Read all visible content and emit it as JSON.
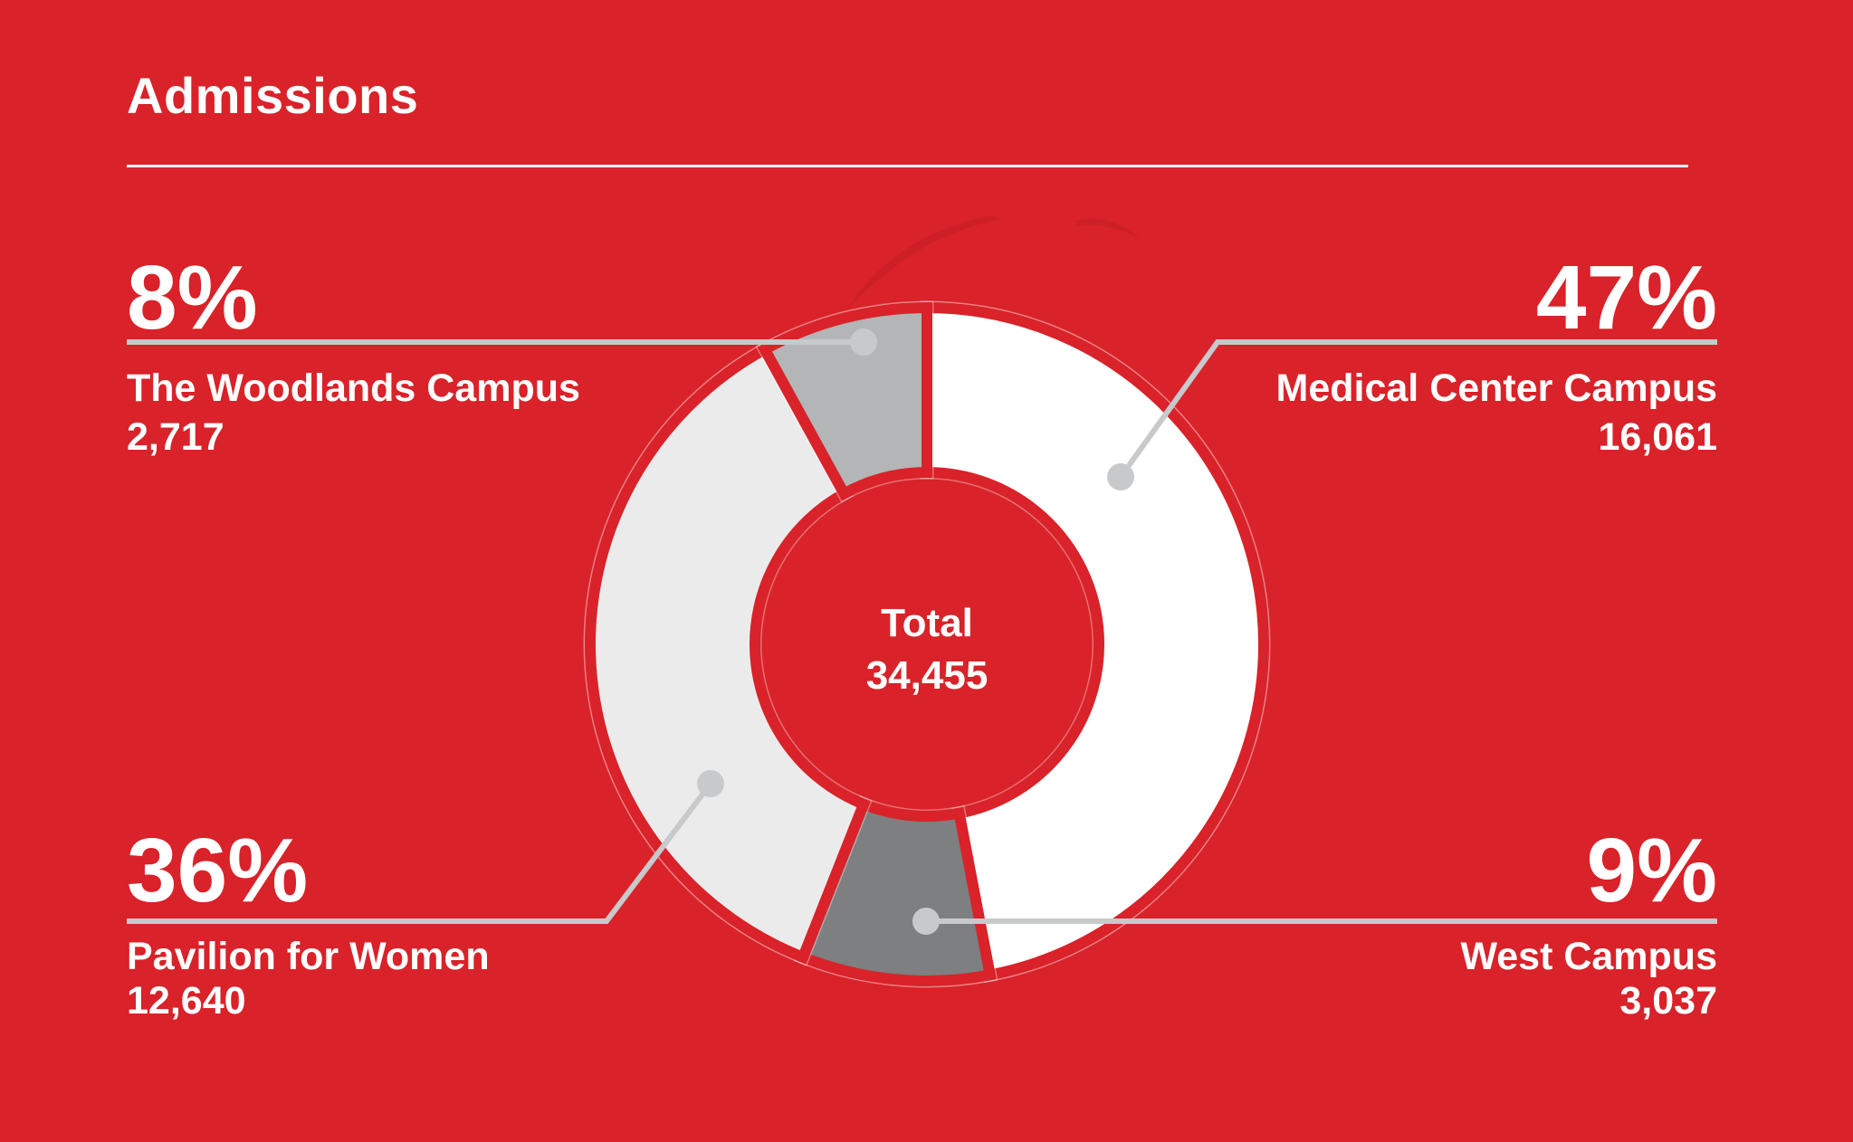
{
  "page": {
    "title": "Admissions"
  },
  "colors": {
    "background": "#d92229",
    "text": "#ffffff",
    "title_rule": "#ffffff",
    "leader_line": "#c7c9cb",
    "segment_medical_center": "#ffffff",
    "segment_west": "#7e7f80",
    "segment_pavilion": "#ebebeb",
    "segment_woodlands": "#b3b5b6"
  },
  "center_label": {
    "title": "Total",
    "value": "34,455"
  },
  "callouts": [
    {
      "id": "the-woodlands-campus",
      "percent": "8%",
      "name": "The Woodlands Campus",
      "value": "2,717"
    },
    {
      "id": "medical-center-campus",
      "percent": "47%",
      "name": "Medical Center Campus",
      "value": "16,061"
    },
    {
      "id": "pavilion-for-women",
      "percent": "36%",
      "name": "Pavilion for Women",
      "value": "12,640"
    },
    {
      "id": "west-campus",
      "percent": "9%",
      "name": "West Campus",
      "value": "3,037"
    }
  ],
  "chart_data": {
    "type": "pie",
    "subtype": "donut",
    "title": "Admissions",
    "center_label": "Total",
    "center_value": 34455,
    "direction": "clockwise",
    "start_angle_deg": 0,
    "legend_position": "callouts",
    "segments": [
      {
        "label": "Medical Center Campus",
        "percent": 47,
        "value": 16061,
        "color": "#ffffff"
      },
      {
        "label": "West Campus",
        "percent": 9,
        "value": 3037,
        "color": "#7e7f80"
      },
      {
        "label": "Pavilion for Women",
        "percent": 36,
        "value": 12640,
        "color": "#ebebeb"
      },
      {
        "label": "The Woodlands Campus",
        "percent": 8,
        "value": 2717,
        "color": "#b3b5b6"
      }
    ]
  }
}
